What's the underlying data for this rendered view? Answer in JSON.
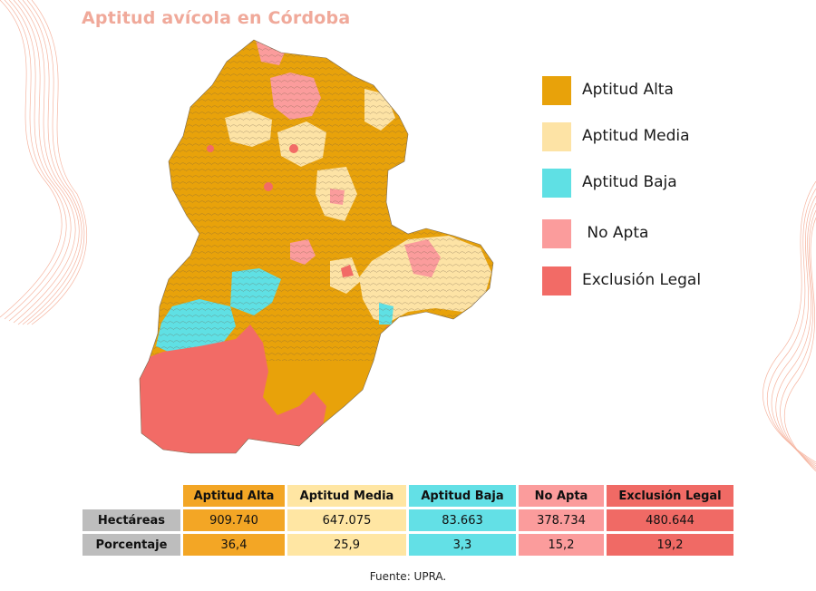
{
  "title": "Aptitud avícola en Córdoba",
  "colors": {
    "alta": "#e8a20a",
    "media": "#fde3a5",
    "baja": "#5fe0e4",
    "no_apta": "#fb9c9c",
    "exclusion": "#f26b66",
    "accent_title": "#f0a99a"
  },
  "legend": [
    {
      "label": "Aptitud Alta",
      "color": "#e8a20a"
    },
    {
      "label": "Aptitud Media",
      "color": "#fde3a5"
    },
    {
      "label": "Aptitud Baja",
      "color": "#5fe0e4"
    },
    {
      "label": " No Apta",
      "color": "#fb9c9c"
    },
    {
      "label": "Exclusión Legal",
      "color": "#f26b66"
    }
  ],
  "table": {
    "headers": [
      "Aptitud Alta",
      "Aptitud Media",
      "Aptitud Baja",
      "No Apta",
      "Exclusión Legal"
    ],
    "rows": [
      {
        "label": "Hectáreas",
        "values": [
          "909.740",
          "647.075",
          "83.663",
          "378.734",
          "480.644"
        ]
      },
      {
        "label": "Porcentaje",
        "values": [
          "36,4",
          "25,9",
          "3,3",
          "15,2",
          "19,2"
        ]
      }
    ]
  },
  "source": "Fuente: UPRA."
}
